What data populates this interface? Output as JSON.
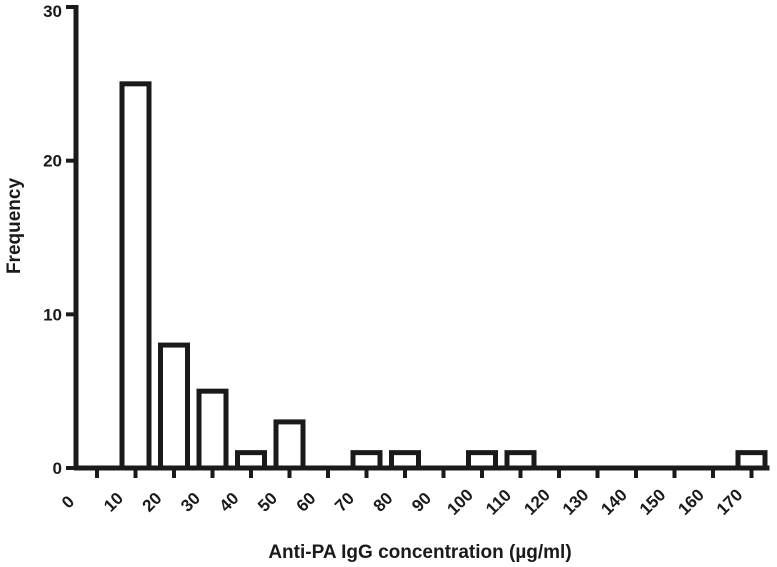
{
  "chart_data": {
    "type": "bar",
    "title": "",
    "xlabel": "Anti-PA IgG concentration (µg/ml)",
    "ylabel": "Frequency",
    "categories": [
      "0",
      "10",
      "20",
      "30",
      "40",
      "50",
      "60",
      "70",
      "80",
      "90",
      "100",
      "110",
      "120",
      "130",
      "140",
      "150",
      "160",
      "170"
    ],
    "values": [
      0,
      25,
      8,
      5,
      1,
      3,
      0,
      1,
      1,
      0,
      1,
      1,
      0,
      0,
      0,
      0,
      0,
      1
    ],
    "ylim": [
      0,
      30
    ],
    "yticks": [
      0,
      10,
      20,
      30
    ],
    "grid": false,
    "legend": "none",
    "bar_fill": "#ffffff",
    "bar_stroke": "#1a1a1a"
  }
}
